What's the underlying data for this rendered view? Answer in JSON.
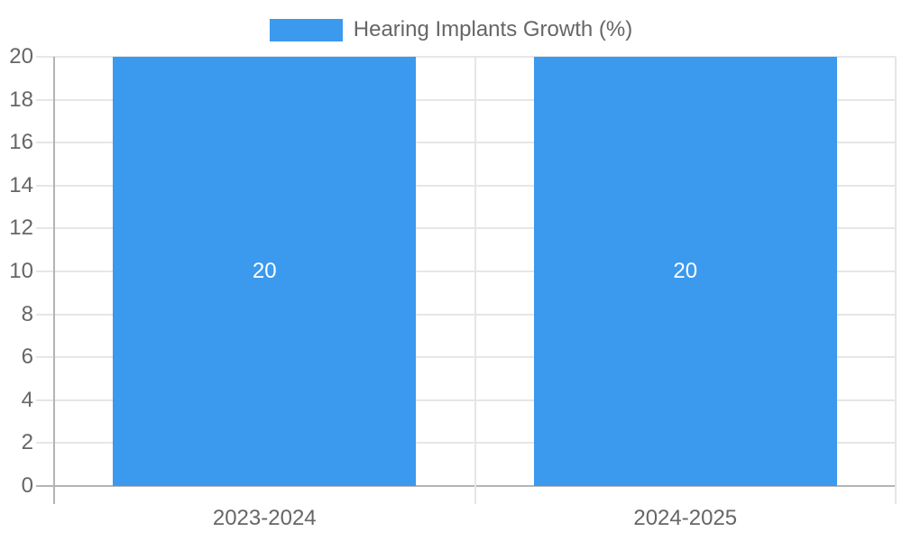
{
  "chart_data": {
    "type": "bar",
    "title": "",
    "categories": [
      "2023-2024",
      "2024-2025"
    ],
    "series": [
      {
        "name": "Hearing Implants Growth (%)",
        "color": "#3b99ee",
        "values": [
          20,
          20
        ]
      }
    ],
    "bar_labels": [
      "20",
      "20"
    ],
    "xlabel": "",
    "ylabel": "",
    "ylim": [
      0,
      20
    ],
    "yticks": [
      0,
      2,
      4,
      6,
      8,
      10,
      12,
      14,
      16,
      18,
      20
    ],
    "grid": true,
    "legend_position": "top",
    "theme": {
      "background": "#ffffff",
      "grid_color": "#e6e6e6",
      "axis_line_color": "#b4b4b4",
      "tick_text_color": "#666666",
      "legend_text_color": "#666666",
      "bar_label_color": "#ffffff"
    }
  }
}
